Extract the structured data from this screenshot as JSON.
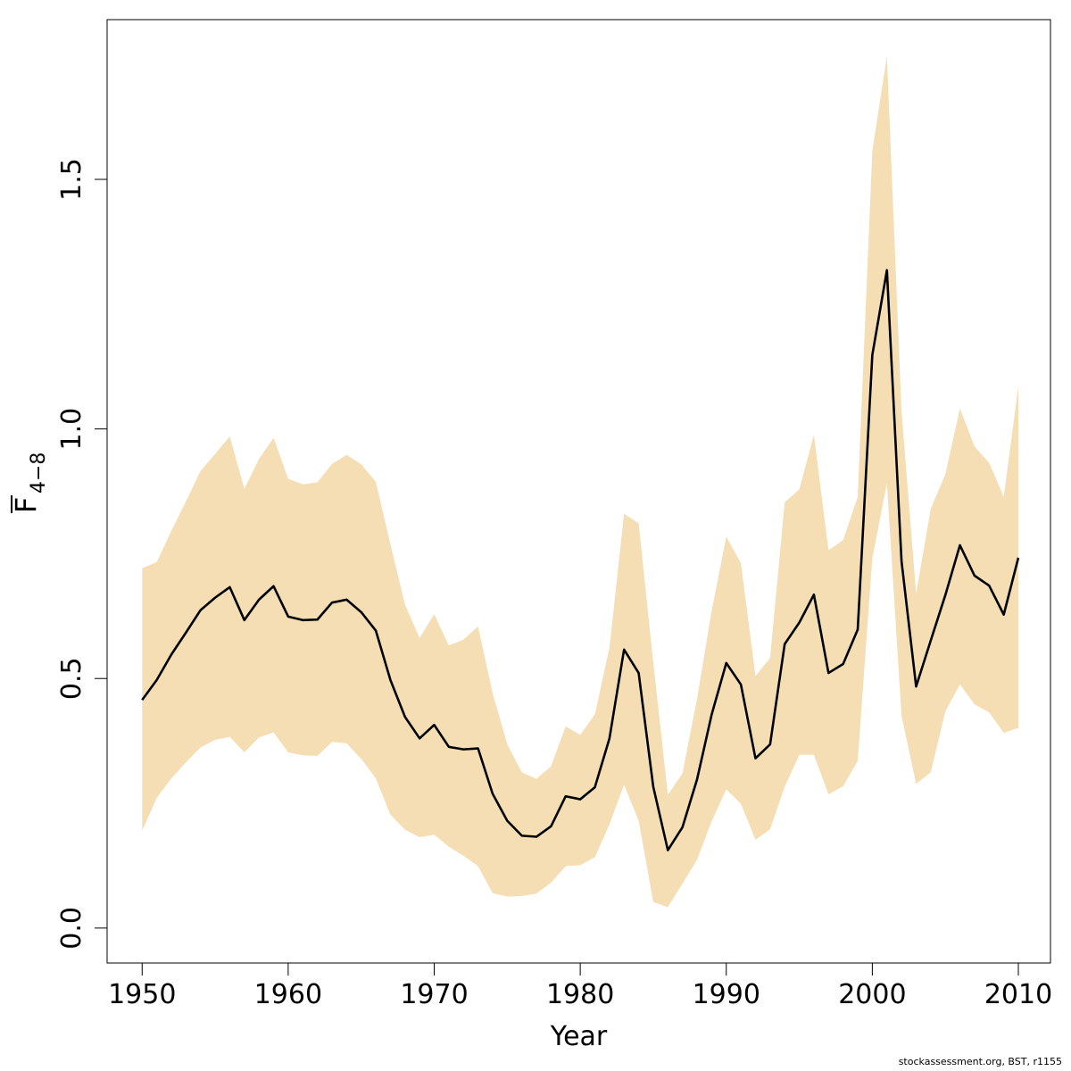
{
  "chart_data": {
    "type": "area",
    "xlabel": "Year",
    "ylabel": {
      "main": "F",
      "subscript": "4−8"
    },
    "xlim": [
      1947.6,
      2012.2
    ],
    "ylim": [
      -0.07,
      1.82
    ],
    "xticks": [
      1950,
      1960,
      1970,
      1980,
      1990,
      2000,
      2010
    ],
    "yticks": [
      0.0,
      0.5,
      1.0,
      1.5
    ],
    "ytick_labels": [
      "0.0",
      "0.5",
      "1.0",
      "1.5"
    ],
    "band_color": "#F5DEB3",
    "line_color": "#000000",
    "grid": false,
    "x": [
      1950,
      1951,
      1952,
      1953,
      1954,
      1955,
      1956,
      1957,
      1958,
      1959,
      1960,
      1961,
      1962,
      1963,
      1964,
      1965,
      1966,
      1967,
      1968,
      1969,
      1970,
      1971,
      1972,
      1973,
      1974,
      1975,
      1976,
      1977,
      1978,
      1979,
      1980,
      1981,
      1982,
      1983,
      1984,
      1985,
      1986,
      1987,
      1988,
      1989,
      1990,
      1991,
      1992,
      1993,
      1994,
      1995,
      1996,
      1997,
      1998,
      1999,
      2000,
      2001,
      2002,
      2003,
      2004,
      2005,
      2006,
      2007,
      2008,
      2009,
      2010
    ],
    "series": [
      {
        "values": [
          0.457,
          0.497,
          0.548,
          0.592,
          0.637,
          0.662,
          0.683,
          0.617,
          0.658,
          0.685,
          0.624,
          0.617,
          0.618,
          0.652,
          0.658,
          0.633,
          0.596,
          0.497,
          0.423,
          0.38,
          0.407,
          0.363,
          0.358,
          0.36,
          0.269,
          0.215,
          0.185,
          0.183,
          0.204,
          0.264,
          0.258,
          0.282,
          0.38,
          0.558,
          0.511,
          0.283,
          0.156,
          0.202,
          0.298,
          0.428,
          0.531,
          0.488,
          0.34,
          0.368,
          0.569,
          0.612,
          0.668,
          0.511,
          0.529,
          0.598,
          1.148,
          1.318,
          0.735,
          0.484,
          0.576,
          0.667,
          0.767,
          0.706,
          0.686,
          0.628,
          0.742
        ]
      },
      {
        "name": "upper",
        "values": [
          0.721,
          0.733,
          0.796,
          0.855,
          0.916,
          0.95,
          0.985,
          0.88,
          0.94,
          0.982,
          0.9,
          0.889,
          0.893,
          0.93,
          0.948,
          0.929,
          0.894,
          0.769,
          0.648,
          0.581,
          0.629,
          0.566,
          0.578,
          0.604,
          0.471,
          0.368,
          0.312,
          0.299,
          0.324,
          0.404,
          0.387,
          0.428,
          0.562,
          0.83,
          0.811,
          0.532,
          0.267,
          0.31,
          0.46,
          0.636,
          0.784,
          0.731,
          0.505,
          0.541,
          0.853,
          0.879,
          0.988,
          0.757,
          0.777,
          0.864,
          1.557,
          1.747,
          1.036,
          0.67,
          0.84,
          0.909,
          1.041,
          0.965,
          0.932,
          0.864,
          1.085
        ]
      },
      {
        "name": "lower",
        "values": [
          0.195,
          0.261,
          0.3,
          0.332,
          0.362,
          0.377,
          0.383,
          0.352,
          0.382,
          0.392,
          0.352,
          0.346,
          0.345,
          0.373,
          0.37,
          0.339,
          0.3,
          0.227,
          0.197,
          0.182,
          0.187,
          0.163,
          0.145,
          0.124,
          0.07,
          0.063,
          0.064,
          0.069,
          0.091,
          0.124,
          0.126,
          0.142,
          0.208,
          0.287,
          0.215,
          0.052,
          0.042,
          0.089,
          0.137,
          0.214,
          0.278,
          0.249,
          0.177,
          0.198,
          0.283,
          0.347,
          0.347,
          0.268,
          0.284,
          0.335,
          0.741,
          0.891,
          0.425,
          0.289,
          0.312,
          0.434,
          0.488,
          0.448,
          0.432,
          0.391,
          0.401
        ]
      }
    ]
  },
  "credit": "stockassessment.org, BST, r1155"
}
